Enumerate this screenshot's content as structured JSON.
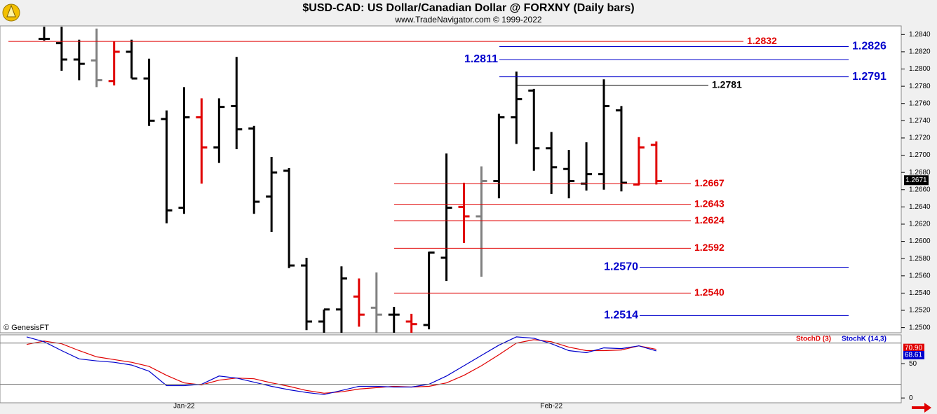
{
  "header": {
    "title": "$USD-CAD:  US Dollar/Canadian Dollar @ FORXNY  (Daily bars)",
    "subtitle": "www.TradeNavigator.com © 1999-2022"
  },
  "chart_data": [
    {
      "type": "ohlc",
      "watermark": "© GenesisFT",
      "categories": [
        null,
        null,
        null,
        null,
        null,
        null,
        null,
        null,
        null,
        "Jan-22",
        null,
        null,
        null,
        null,
        null,
        null,
        null,
        null,
        null,
        null,
        null,
        null,
        null,
        null,
        null,
        null,
        null,
        null,
        null,
        null,
        "Feb-22",
        null,
        null,
        null,
        null,
        null,
        null
      ],
      "open": [
        null,
        1.2835,
        1.283,
        1.2811,
        1.281,
        1.2786,
        1.282,
        1.2789,
        1.2742,
        1.2639,
        1.2744,
        1.2709,
        1.2757,
        1.2731,
        1.2652,
        1.2682,
        1.2572,
        1.2507,
        1.2521,
        1.2536,
        1.2523,
        1.2515,
        1.2507,
        1.2503,
        1.2581,
        1.264,
        1.2629,
        1.267,
        1.2744,
        1.2775,
        1.2708,
        1.2684,
        1.2667,
        1.2678,
        1.2752,
        1.2666,
        1.2712
      ],
      "high": [
        null,
        1.2849,
        1.2849,
        1.2834,
        1.2847,
        1.2832,
        1.2834,
        1.2812,
        1.2752,
        1.2779,
        1.2766,
        1.2766,
        1.2814,
        1.2734,
        1.2698,
        1.2685,
        1.2581,
        1.2521,
        1.2571,
        1.2557,
        1.2564,
        1.2524,
        1.2516,
        1.2588,
        1.2702,
        1.2668,
        1.2687,
        1.2748,
        1.2797,
        1.2777,
        1.2727,
        1.2706,
        1.2715,
        1.2788,
        1.2757,
        1.2721,
        1.2716
      ],
      "low": [
        null,
        1.2833,
        1.2798,
        1.2787,
        1.2779,
        1.2781,
        1.2789,
        1.2734,
        1.2621,
        1.2632,
        1.2667,
        1.2691,
        1.2707,
        1.2632,
        1.2611,
        1.2569,
        1.2497,
        1.2494,
        1.2494,
        1.2501,
        1.2494,
        1.2494,
        1.2494,
        1.2498,
        1.2554,
        1.2598,
        1.2559,
        1.265,
        1.2713,
        1.2682,
        1.2655,
        1.265,
        1.2659,
        1.266,
        1.2658,
        1.2665,
        1.2666
      ],
      "close": [
        null,
        1.2835,
        1.2811,
        1.2806,
        1.2787,
        1.282,
        1.2789,
        1.274,
        1.2636,
        1.2744,
        1.2709,
        1.2756,
        1.273,
        1.2646,
        1.268,
        1.2572,
        1.2507,
        1.2521,
        1.2557,
        1.2515,
        1.2515,
        1.2515,
        1.2504,
        1.2587,
        1.2639,
        1.2629,
        1.267,
        1.2744,
        1.2765,
        1.2708,
        1.2686,
        1.267,
        1.2678,
        1.2757,
        1.2668,
        1.2709,
        1.267
      ],
      "colors": [
        "#000000",
        "#000000",
        "#000000",
        "#000000",
        "#808080",
        "#e00000",
        "#000000",
        "#000000",
        "#000000",
        "#000000",
        "#e00000",
        "#000000",
        "#000000",
        "#000000",
        "#000000",
        "#000000",
        "#000000",
        "#000000",
        "#000000",
        "#e00000",
        "#808080",
        "#000000",
        "#e00000",
        "#000000",
        "#000000",
        "#e00000",
        "#808080",
        "#000000",
        "#000000",
        "#000000",
        "#000000",
        "#000000",
        "#000000",
        "#000000",
        "#000000",
        "#e00000",
        "#e00000"
      ],
      "ylim": [
        1.2494,
        1.285
      ],
      "yticks": [
        {
          "value": 1.25,
          "label": "1.2500"
        },
        {
          "value": 1.252,
          "label": "1.2520"
        },
        {
          "value": 1.254,
          "label": "1.2540"
        },
        {
          "value": 1.256,
          "label": "1.2560"
        },
        {
          "value": 1.258,
          "label": "1.2580"
        },
        {
          "value": 1.26,
          "label": "1.2600"
        },
        {
          "value": 1.262,
          "label": "1.2620"
        },
        {
          "value": 1.264,
          "label": "1.2640"
        },
        {
          "value": 1.266,
          "label": "1.2660"
        },
        {
          "value": 1.268,
          "label": "1.2680"
        },
        {
          "value": 1.27,
          "label": "1.2700"
        },
        {
          "value": 1.272,
          "label": "1.2720"
        },
        {
          "value": 1.274,
          "label": "1.2740"
        },
        {
          "value": 1.276,
          "label": "1.2760"
        },
        {
          "value": 1.278,
          "label": "1.2780"
        },
        {
          "value": 1.28,
          "label": "1.2800"
        },
        {
          "value": 1.282,
          "label": "1.2820"
        },
        {
          "value": 1.284,
          "label": "1.2840"
        }
      ],
      "levels": [
        {
          "value": 1.2832,
          "color": "#e00000"
        },
        {
          "value": 1.2826,
          "color": "#0000cc"
        },
        {
          "value": 1.2811,
          "color": "#0000cc"
        },
        {
          "value": 1.2791,
          "color": "#0000cc"
        },
        {
          "value": 1.2781,
          "color": "#000000"
        },
        {
          "value": 1.2667,
          "color": "#e00000"
        },
        {
          "value": 1.2643,
          "color": "#e00000"
        },
        {
          "value": 1.2624,
          "color": "#e00000"
        },
        {
          "value": 1.2592,
          "color": "#e00000"
        },
        {
          "value": 1.257,
          "label": "1.2570",
          "color": "#0000cc"
        },
        {
          "value": 1.254,
          "label": "1.2540",
          "color": "#e00000"
        },
        {
          "value": 1.2514,
          "color": "#0000cc"
        }
      ],
      "last_price": 1.2671
    },
    {
      "type": "line",
      "ylim": [
        -7,
        92
      ],
      "yticks": [
        0,
        50
      ],
      "levels": [
        20,
        80
      ],
      "series": [
        {
          "name": "StochD (3)",
          "color": "#e00000",
          "last_label": "70.90",
          "values": [
            78,
            83,
            79,
            69,
            60,
            56,
            52,
            46,
            33,
            22,
            19,
            26,
            29,
            28,
            22,
            17,
            11,
            7,
            9,
            13,
            15,
            17,
            16,
            17,
            22,
            33,
            47,
            63,
            80,
            85,
            82,
            74,
            69,
            69,
            70,
            76,
            70.9
          ]
        },
        {
          "name": "StochK (14,3)",
          "color": "#0000cc",
          "last_label": "68.61",
          "values": [
            89,
            82,
            69,
            57,
            54,
            52,
            48,
            39,
            18,
            18,
            20,
            32,
            29,
            23,
            17,
            12,
            8,
            5,
            11,
            17,
            17,
            16,
            16,
            20,
            32,
            47,
            62,
            77,
            89,
            87,
            79,
            69,
            66,
            73,
            72,
            76,
            68.61
          ]
        }
      ]
    }
  ]
}
